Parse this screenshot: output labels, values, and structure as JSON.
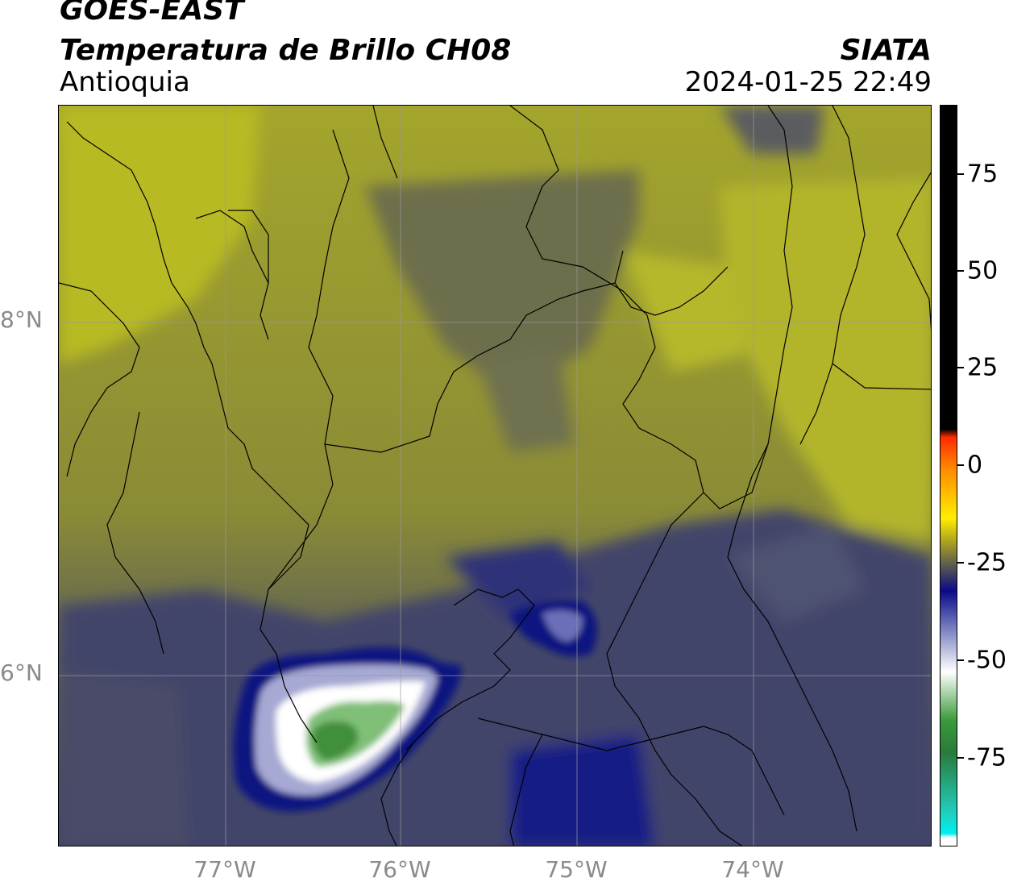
{
  "header": {
    "satellite": "GOES-EAST",
    "product": "Temperatura de Brillo CH08",
    "region": "Antioquia",
    "agency": "SIATA",
    "datetime": "2024-01-25 22:49"
  },
  "axes": {
    "lat_labels": [
      "8°N",
      "6°N"
    ],
    "lon_labels": [
      "77°W",
      "76°W",
      "75°W",
      "74°W"
    ]
  },
  "colorbar": {
    "ticks": [
      "75",
      "50",
      "25",
      "0",
      "-25",
      "-50",
      "-75"
    ],
    "stops": [
      {
        "value": 90,
        "color": "#000000"
      },
      {
        "value": 10,
        "color": "#000000"
      },
      {
        "value": 8,
        "color": "#ff2a00"
      },
      {
        "value": 0,
        "color": "#ff8c00"
      },
      {
        "value": -12,
        "color": "#ffee00"
      },
      {
        "value": -18,
        "color": "#a8a020"
      },
      {
        "value": -25,
        "color": "#4a4a5a"
      },
      {
        "value": -30,
        "color": "#0a0a8a"
      },
      {
        "value": -40,
        "color": "#8088c4"
      },
      {
        "value": -50,
        "color": "#ffffff"
      },
      {
        "value": -62,
        "color": "#3a9a3a"
      },
      {
        "value": -70,
        "color": "#2a7a3a"
      },
      {
        "value": -85,
        "color": "#20d0c0"
      },
      {
        "value": -90,
        "color": "#00f0f0"
      },
      {
        "value": -91,
        "color": "#ffffff"
      },
      {
        "value": -93,
        "color": "#ffffff"
      }
    ]
  },
  "palette": {
    "olive": "#b5b828",
    "olive_dark": "#8e8f30",
    "grey_olive": "#6f7040",
    "slate": "#55566a",
    "navy_grey": "#3c3f6a",
    "navy": "#0d1480",
    "lavender": "#a6a9d3",
    "white": "#ffffff",
    "green": "#3f8f3a",
    "green_dark": "#2f7a35",
    "border": "#000000",
    "grid": "#9a9a9a"
  }
}
